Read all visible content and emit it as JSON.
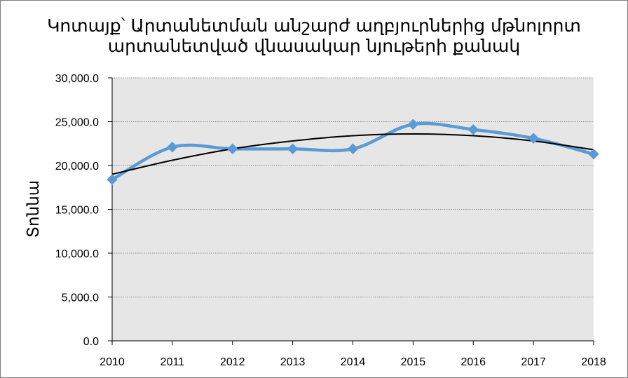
{
  "title_lines": [
    "Կոտայք՝ Արտանետման անշարժ աղբյուրներից մթնոլորտ",
    "արտանետված վնասակար նյութերի քանակ"
  ],
  "chart_data": {
    "type": "line",
    "title": "Կոտայք՝ Արտանետման անշարժ աղբյուրներից մթնոլորտ արտանետված վնասակար նյութերի քանակ",
    "xlabel": "",
    "ylabel": "Տոննա",
    "x": [
      "2010",
      "2011",
      "2012",
      "2013",
      "2014",
      "2015",
      "2016",
      "2017",
      "2018"
    ],
    "series": [
      {
        "values": [
          18400,
          22100,
          21900,
          21900,
          21900,
          24700,
          24100,
          23100,
          21300
        ],
        "color": "#5b9bd5",
        "marker": "diamond",
        "smooth": true
      },
      {
        "values": [
          19000,
          20600,
          21900,
          22800,
          23400,
          23600,
          23400,
          22800,
          21800
        ],
        "color": "#000000",
        "trendline": "polynomial"
      }
    ],
    "ylim": [
      0,
      30000
    ],
    "yticks": [
      "30,000.0",
      "25,000.0",
      "20,000.0",
      "15,000.0",
      "10,000.0",
      "5,000.0",
      "0.0"
    ],
    "ytick_values": [
      30000,
      25000,
      20000,
      15000,
      10000,
      5000,
      0
    ],
    "grid": true,
    "plot_background": "#e6e6e6",
    "gridline_color": "#8c8c8c"
  }
}
